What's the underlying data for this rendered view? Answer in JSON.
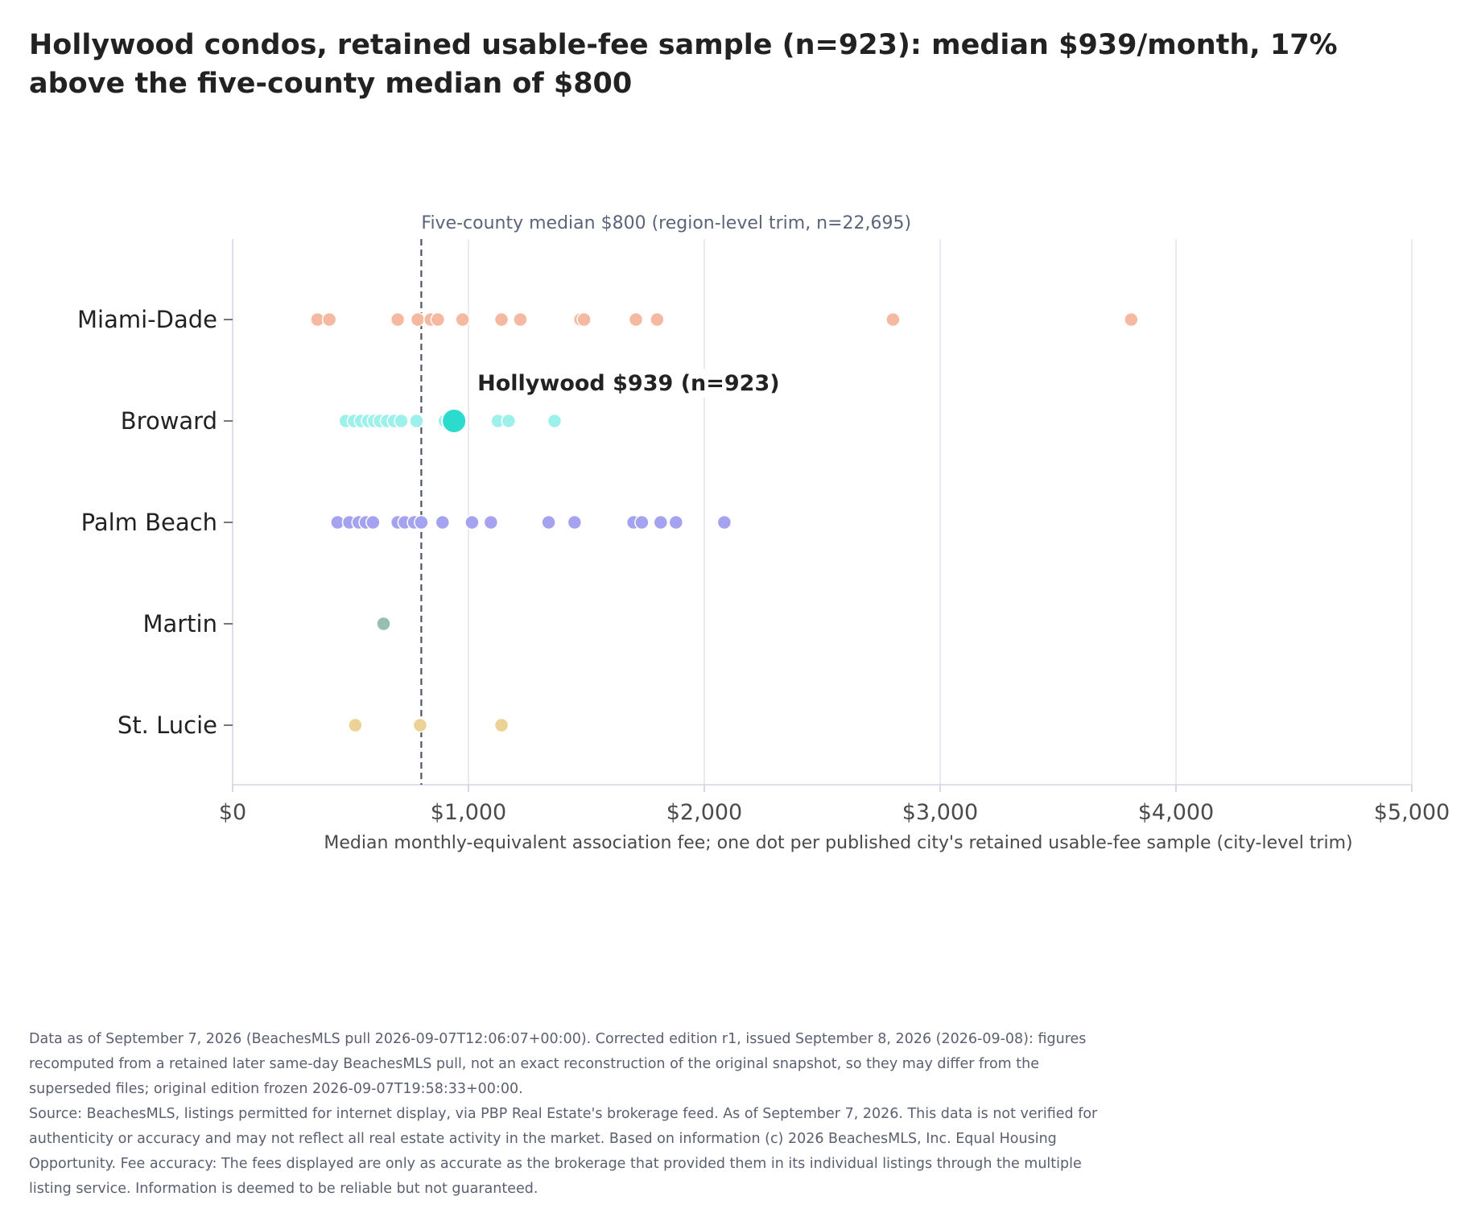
{
  "title": "Hollywood condos, retained usable-fee sample (n=923): median $939/month, 17% above the five-county median of $800",
  "footnote": {
    "line1": "Data as of September 7, 2026 (BeachesMLS pull 2026-09-07T12:06:07+00:00). Corrected edition r1, issued September 8, 2026 (2026-09-08): figures recomputed from a retained later same-day BeachesMLS pull, not an exact reconstruction of the original snapshot, so they may differ from the superseded files; original edition frozen 2026-09-07T19:58:33+00:00.",
    "line2": "Source: BeachesMLS, listings permitted for internet display, via PBP Real Estate's brokerage feed. As of September 7, 2026. This data is not verified for authenticity or accuracy and may not reflect all real estate activity in the market. Based on information (c) 2026 BeachesMLS, Inc. Equal Housing Opportunity. Fee accuracy: The fees displayed are only as accurate as the brokerage that provided them in its individual listings through the multiple listing service. Information is deemed to be reliable but not guaranteed."
  },
  "chart_data": {
    "type": "scatter",
    "title": "Hollywood condos, retained usable-fee sample (n=923): median $939/month, 17% above the five-county median of $800",
    "xlabel": "Median monthly-equivalent association fee; one dot per published city's retained usable-fee sample (city-level trim)",
    "ylabel": "",
    "xlim": [
      0,
      5000
    ],
    "xticks": [
      0,
      1000,
      2000,
      3000,
      4000,
      5000
    ],
    "xtick_labels": [
      "$0",
      "$1,000",
      "$2,000",
      "$3,000",
      "$4,000",
      "$5,000"
    ],
    "grid": "vertical",
    "categories": [
      "Miami-Dade",
      "Broward",
      "Palm Beach",
      "Martin",
      "St. Lucie"
    ],
    "series": [
      {
        "category": "Miami-Dade",
        "color": "#f4b9a0",
        "values": [
          360,
          410,
          700,
          785,
          840,
          870,
          975,
          1140,
          1220,
          1475,
          1490,
          1710,
          1800,
          2800,
          3810
        ]
      },
      {
        "category": "Broward",
        "color": "#9ef0ea",
        "values": [
          480,
          515,
          545,
          575,
          600,
          625,
          655,
          685,
          715,
          780,
          900,
          1125,
          1170,
          1365
        ]
      },
      {
        "category": "Palm Beach",
        "color": "#a5a2ef",
        "values": [
          445,
          495,
          535,
          565,
          595,
          700,
          730,
          770,
          800,
          890,
          1015,
          1095,
          1340,
          1450,
          1700,
          1735,
          1815,
          1880,
          2085
        ]
      },
      {
        "category": "Martin",
        "color": "#95c0ad",
        "values": [
          640
        ]
      },
      {
        "category": "St. Lucie",
        "color": "#ecd294",
        "values": [
          520,
          795,
          1140
        ]
      }
    ],
    "reference_line": {
      "value": 800,
      "label": "Five-county median $800 (region-level trim, n=22,695)"
    },
    "highlight": {
      "category": "Broward",
      "value": 939,
      "label": "Hollywood $939 (n=923)",
      "color": "#2bdcce"
    }
  }
}
